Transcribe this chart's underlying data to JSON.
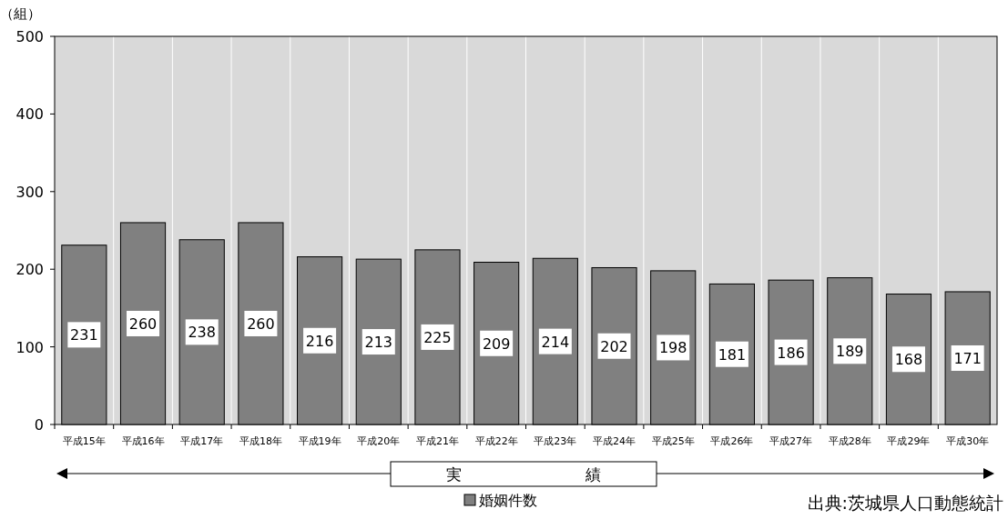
{
  "chart_data": {
    "type": "bar",
    "ylabel": "（組）",
    "categories": [
      "平成15年",
      "平成16年",
      "平成17年",
      "平成18年",
      "平成19年",
      "平成20年",
      "平成21年",
      "平成22年",
      "平成23年",
      "平成24年",
      "平成25年",
      "平成26年",
      "平成27年",
      "平成28年",
      "平成29年",
      "平成30年"
    ],
    "series": [
      {
        "name": "婚姻件数",
        "color": "#808080",
        "values": [
          231,
          260,
          238,
          260,
          216,
          213,
          225,
          209,
          214,
          202,
          198,
          181,
          186,
          189,
          168,
          171
        ]
      }
    ],
    "ylim": [
      0,
      500
    ],
    "yticks": [
      0,
      100,
      200,
      300,
      400,
      500
    ],
    "grid": "x",
    "legend": "bottom",
    "data_labels": true,
    "annotations": [
      "実　　　　　　　　績",
      "出典:茨城県人口動態統計"
    ]
  }
}
